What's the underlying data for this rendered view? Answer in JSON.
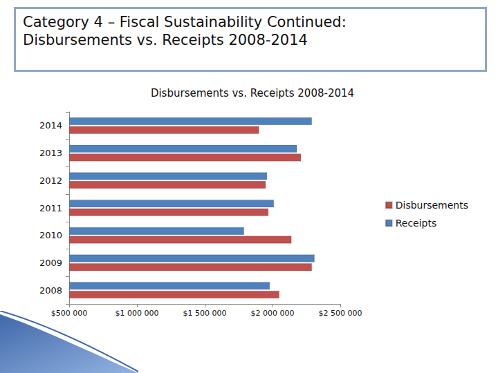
{
  "slide": {
    "heading": [
      "Category 4 – Fiscal Sustainability Continued:",
      "Disbursements vs. Receipts 2008-2014"
    ]
  },
  "chart_data": {
    "type": "bar",
    "title": "Disbursements vs. Receipts 2008-2014",
    "orientation": "horizontal",
    "categories": [
      "2008",
      "2009",
      "2010",
      "2011",
      "2012",
      "2013",
      "2014"
    ],
    "series": [
      {
        "name": "Disbursements",
        "color": "#c0504d",
        "values": [
          2050000,
          2290000,
          2140000,
          1970000,
          1950000,
          2210000,
          1900000
        ]
      },
      {
        "name": "Receipts",
        "color": "#4f81bd",
        "values": [
          1980000,
          2310000,
          1790000,
          2010000,
          1960000,
          2180000,
          2290000
        ]
      }
    ],
    "xlim": [
      500000,
      2500000
    ],
    "xticks": [
      {
        "value": 500000,
        "label": "$500 000"
      },
      {
        "value": 1000000,
        "label": "$1 000 000"
      },
      {
        "value": 1500000,
        "label": "$1 500 000"
      },
      {
        "value": 2000000,
        "label": "$2 000 000"
      },
      {
        "value": 2500000,
        "label": "$2 500 000"
      }
    ],
    "grid": false,
    "legend": "right"
  }
}
